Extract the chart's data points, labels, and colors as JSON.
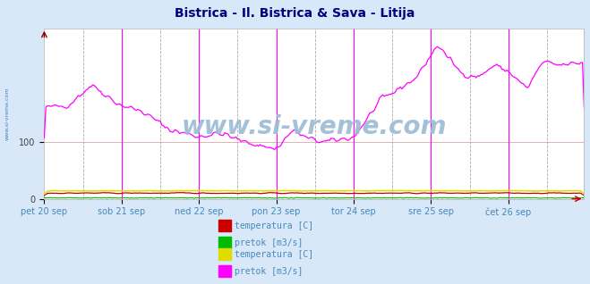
{
  "title": "Bistrica - Il. Bistrica & Sava - Litija",
  "title_color": "#000080",
  "title_fontsize": 10,
  "bg_color": "#d8e8f8",
  "plot_bg_color": "#ffffff",
  "x_labels": [
    "pet 20 sep",
    "sob 21 sep",
    "ned 22 sep",
    "pon 23 sep",
    "tor 24 sep",
    "sre 25 sep",
    "čet 26 sep"
  ],
  "x_tick_positions": [
    0,
    48,
    96,
    144,
    192,
    240,
    288
  ],
  "n_points": 336,
  "yticks": [
    0,
    100
  ],
  "ylim": [
    0,
    300
  ],
  "grid_color": "#e8b0b0",
  "watermark": "www.si-vreme.com",
  "watermark_color": "#9bbbd4",
  "sidebar_text": "www.si-vreme.com",
  "sidebar_color": "#4080c0",
  "legend_items": [
    {
      "label": "temperatura [C]",
      "color": "#cc0000"
    },
    {
      "label": "pretok [m3/s]",
      "color": "#00bb00"
    },
    {
      "label": "temperatura [C]",
      "color": "#dddd00"
    },
    {
      "label": "pretok [m3/s]",
      "color": "#ff00ff"
    }
  ]
}
